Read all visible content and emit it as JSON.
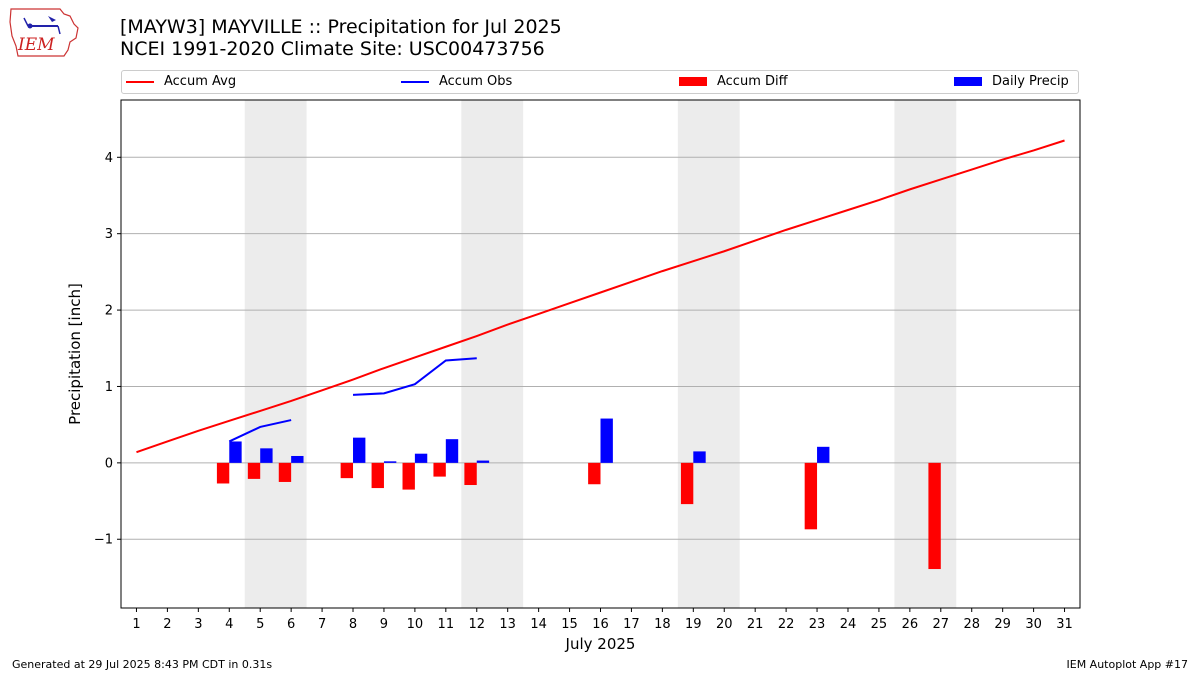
{
  "header": {
    "title_line1": "[MAYW3] MAYVILLE :: Precipitation for Jul 2025",
    "title_line2": "NCEI 1991-2020 Climate Site: USC00473756",
    "logo_text": "IEM"
  },
  "footer": {
    "generated": "Generated at 29 Jul 2025 8:43 PM CDT in 0.31s",
    "app": "IEM Autoplot App #17"
  },
  "colors": {
    "accum_avg": "#ff0000",
    "accum_obs": "#0000ff",
    "accum_diff": "#ff0000",
    "daily_precip": "#0000ff",
    "weekend_shade": "#ececec",
    "grid": "#b0b0b0"
  },
  "chart_data": {
    "type": "line",
    "xlabel": "July 2025",
    "ylabel": "Precipitation [inch]",
    "ylim": [
      -1.9,
      4.75
    ],
    "xlim": [
      0.5,
      31.5
    ],
    "x_ticks": [
      1,
      2,
      3,
      4,
      5,
      6,
      7,
      8,
      9,
      10,
      11,
      12,
      13,
      14,
      15,
      16,
      17,
      18,
      19,
      20,
      21,
      22,
      23,
      24,
      25,
      26,
      27,
      28,
      29,
      30,
      31
    ],
    "y_ticks": [
      -1,
      0,
      1,
      2,
      3,
      4
    ],
    "y_tick_labels": [
      "−1",
      "0",
      "1",
      "2",
      "3",
      "4"
    ],
    "grid": "horizontal",
    "legend_placement": "top, horizontal",
    "weekend_shading": [
      [
        4.5,
        6.5
      ],
      [
        11.5,
        13.5
      ],
      [
        18.5,
        20.5
      ],
      [
        25.5,
        27.5
      ]
    ],
    "legend": [
      {
        "name": "Accum Avg",
        "kind": "line",
        "color_key": "accum_avg"
      },
      {
        "name": "Accum Obs",
        "kind": "line",
        "color_key": "accum_obs"
      },
      {
        "name": "Accum Diff",
        "kind": "bar",
        "color_key": "accum_diff"
      },
      {
        "name": "Daily Precip",
        "kind": "bar",
        "color_key": "daily_precip"
      }
    ],
    "series": [
      {
        "name": "Accum Avg",
        "type": "line",
        "x": [
          1,
          2,
          3,
          4,
          5,
          6,
          7,
          8,
          9,
          10,
          11,
          12,
          13,
          14,
          15,
          16,
          17,
          18,
          19,
          20,
          21,
          22,
          23,
          24,
          25,
          26,
          27,
          28,
          29,
          30,
          31
        ],
        "values": [
          0.14,
          0.28,
          0.42,
          0.55,
          0.68,
          0.81,
          0.95,
          1.09,
          1.24,
          1.38,
          1.52,
          1.66,
          1.81,
          1.95,
          2.09,
          2.23,
          2.37,
          2.51,
          2.64,
          2.77,
          2.91,
          3.05,
          3.18,
          3.31,
          3.44,
          3.58,
          3.71,
          3.84,
          3.97,
          4.09,
          4.22
        ]
      },
      {
        "name": "Accum Obs",
        "type": "line",
        "segments": [
          {
            "x": [
              4,
              5,
              6
            ],
            "values": [
              0.28,
              0.47,
              0.56
            ]
          },
          {
            "x": [
              8,
              9,
              10,
              11,
              12
            ],
            "values": [
              0.89,
              0.91,
              1.03,
              1.34,
              1.37
            ]
          }
        ]
      },
      {
        "name": "Accum Diff",
        "type": "bar",
        "x": [
          4,
          5,
          6,
          8,
          9,
          10,
          11,
          12,
          16,
          19,
          23,
          27
        ],
        "values": [
          -0.27,
          -0.21,
          -0.25,
          -0.2,
          -0.33,
          -0.35,
          -0.18,
          -0.29,
          -0.28,
          -0.54,
          -0.87,
          -1.39
        ]
      },
      {
        "name": "Daily Precip",
        "type": "bar",
        "x": [
          4,
          5,
          6,
          8,
          9,
          10,
          11,
          12,
          16,
          19,
          23
        ],
        "values": [
          0.28,
          0.19,
          0.09,
          0.33,
          0.02,
          0.12,
          0.31,
          0.03,
          0.58,
          0.15,
          0.21
        ]
      }
    ]
  }
}
